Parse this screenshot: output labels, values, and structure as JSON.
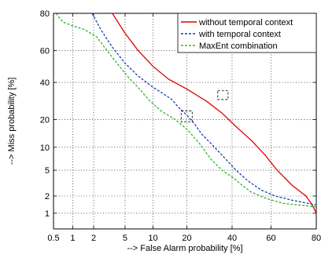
{
  "chart_data": {
    "type": "line",
    "title": "",
    "xlabel": "--> False Alarm probability [%]",
    "ylabel": "--> Miss probability [%]",
    "scale": "normal-deviate (DET)",
    "xlim": [
      0.5,
      80
    ],
    "ylim": [
      0.5,
      80
    ],
    "xticks": [
      0.5,
      1,
      2,
      5,
      10,
      20,
      40,
      60,
      80
    ],
    "xtick_labels": [
      "0.5",
      "1",
      "2",
      "5",
      "10",
      "20",
      "40",
      "60",
      "80"
    ],
    "yticks": [
      1,
      2,
      5,
      10,
      20,
      40,
      60,
      80
    ],
    "ytick_labels": [
      "1",
      "2",
      "5",
      "10",
      "20",
      "40",
      "60",
      "80"
    ],
    "grid": true,
    "legend_position": "top-right",
    "series": [
      {
        "name": "without temporal context",
        "color": "#e00000",
        "dash": "solid",
        "points": [
          [
            3.5,
            80
          ],
          [
            5,
            70
          ],
          [
            7,
            60
          ],
          [
            10,
            50
          ],
          [
            14,
            42
          ],
          [
            20,
            36
          ],
          [
            28,
            29
          ],
          [
            35,
            23
          ],
          [
            42,
            17
          ],
          [
            50,
            12
          ],
          [
            57,
            8
          ],
          [
            63,
            5
          ],
          [
            70,
            3
          ],
          [
            76,
            2
          ],
          [
            78.5,
            1.4
          ],
          [
            80,
            1.0
          ]
        ]
      },
      {
        "name": "with temporal context",
        "color": "#1a3faf",
        "dash": "dashed",
        "points": [
          [
            1.9,
            80
          ],
          [
            2.5,
            72
          ],
          [
            3.5,
            62
          ],
          [
            5,
            52
          ],
          [
            7,
            44
          ],
          [
            10,
            37
          ],
          [
            12,
            34
          ],
          [
            15,
            30
          ],
          [
            17,
            26
          ],
          [
            20,
            22
          ],
          [
            23,
            18
          ],
          [
            26,
            14
          ],
          [
            30,
            11
          ],
          [
            35,
            8
          ],
          [
            42,
            5
          ],
          [
            48,
            3.5
          ],
          [
            55,
            2.5
          ],
          [
            62,
            2.0
          ],
          [
            70,
            1.7
          ],
          [
            80,
            1.4
          ]
        ]
      },
      {
        "name": "MaxEnt combination",
        "color": "#2bb52b",
        "dash": "dashed",
        "points": [
          [
            0.55,
            80
          ],
          [
            0.7,
            76
          ],
          [
            1.0,
            74
          ],
          [
            1.5,
            72
          ],
          [
            2.2,
            68
          ],
          [
            3,
            60
          ],
          [
            4,
            52
          ],
          [
            5.5,
            43
          ],
          [
            7,
            37
          ],
          [
            9,
            30
          ],
          [
            12,
            24
          ],
          [
            16,
            20
          ],
          [
            20,
            16
          ],
          [
            25,
            11
          ],
          [
            30,
            7
          ],
          [
            35,
            5
          ],
          [
            40,
            4
          ],
          [
            45,
            3
          ],
          [
            50,
            2.3
          ],
          [
            58,
            1.8
          ],
          [
            66,
            1.5
          ],
          [
            80,
            1.3
          ]
        ]
      }
    ],
    "annotations": [
      {
        "shape": "dashed-box",
        "x": [
          33,
          38
        ],
        "y": [
          30,
          35
        ]
      },
      {
        "shape": "dashed-box",
        "x": [
          18,
          22
        ],
        "y": [
          19,
          24
        ]
      }
    ]
  }
}
